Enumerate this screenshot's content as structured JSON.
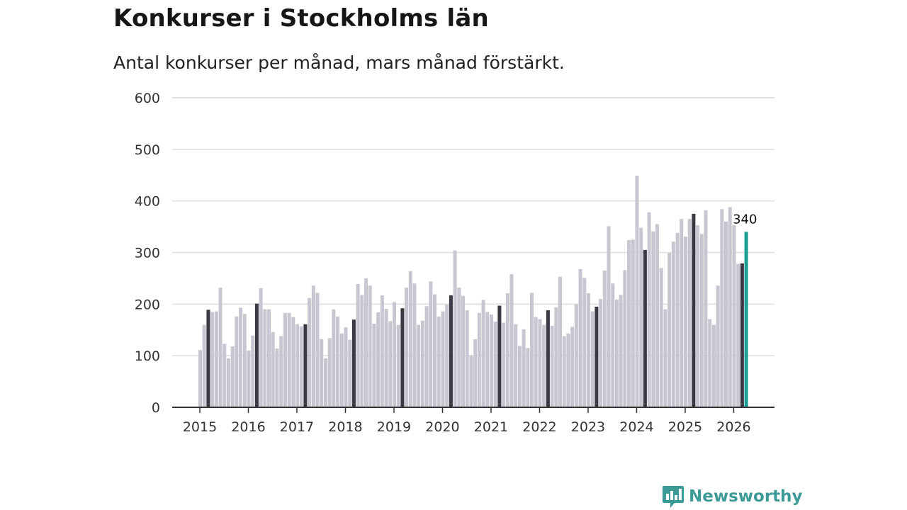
{
  "title": "Konkurser i Stockholms län",
  "subtitle": "Antal konkurser per månad, mars månad förstärkt.",
  "brand": "Newsworthy",
  "colors": {
    "bar": "#c8c7d1",
    "highlight_march": "#3a3944",
    "latest": "#1a9e94",
    "grid": "#dcdce0",
    "axis": "#333333",
    "brand": "#3c9a97"
  },
  "chart_data": {
    "type": "bar",
    "title": "Konkurser i Stockholms län",
    "subtitle": "Antal konkurser per månad, mars månad förstärkt.",
    "xlabel": "",
    "ylabel": "",
    "ylim": [
      0,
      600
    ],
    "y_ticks": [
      0,
      100,
      200,
      300,
      400,
      500,
      600
    ],
    "x_tick_labels": [
      "2015",
      "2016",
      "2017",
      "2018",
      "2019",
      "2020",
      "2021",
      "2022",
      "2023",
      "2024",
      "2025",
      "2026"
    ],
    "start_month": "2015-01",
    "highlight": "mars",
    "latest_label": "340",
    "values": [
      111,
      160,
      189,
      185,
      186,
      232,
      123,
      95,
      118,
      176,
      193,
      181,
      110,
      139,
      201,
      231,
      190,
      190,
      146,
      114,
      138,
      183,
      183,
      175,
      161,
      157,
      161,
      212,
      236,
      222,
      132,
      95,
      134,
      190,
      176,
      143,
      155,
      131,
      170,
      239,
      218,
      250,
      236,
      162,
      184,
      217,
      191,
      167,
      204,
      160,
      192,
      232,
      264,
      240,
      160,
      168,
      196,
      244,
      219,
      176,
      186,
      199,
      217,
      304,
      232,
      216,
      188,
      101,
      132,
      183,
      208,
      185,
      180,
      166,
      197,
      164,
      221,
      258,
      161,
      119,
      151,
      115,
      222,
      175,
      171,
      160,
      188,
      158,
      194,
      253,
      138,
      143,
      156,
      200,
      268,
      251,
      221,
      186,
      195,
      210,
      265,
      351,
      240,
      209,
      218,
      266,
      324,
      325,
      449,
      348,
      305,
      378,
      341,
      355,
      270,
      190,
      299,
      321,
      338,
      365,
      331,
      365,
      375,
      353,
      336,
      382,
      171,
      160,
      236,
      384,
      360,
      388,
      355,
      278,
      279,
      340
    ]
  }
}
